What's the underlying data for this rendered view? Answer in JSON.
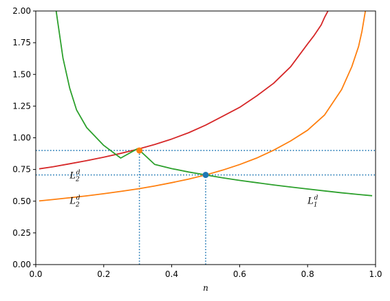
{
  "chart_data": {
    "type": "line",
    "title": "",
    "xlabel": "n",
    "ylabel": "",
    "xlim": [
      0.0,
      1.0
    ],
    "ylim": [
      0.0,
      2.0
    ],
    "grid": false,
    "xticks": [
      "0.0",
      "0.2",
      "0.4",
      "0.6",
      "0.8",
      "1.0"
    ],
    "yticks": [
      "0.00",
      "0.25",
      "0.50",
      "0.75",
      "1.00",
      "1.25",
      "1.50",
      "1.75",
      "2.00"
    ],
    "colors": {
      "red": "#d62728",
      "orange": "#ff7f0e",
      "green": "#2ca02c",
      "blue": "#1f77b4"
    },
    "series": [
      {
        "color": "#d62728",
        "x": [
          0.01,
          0.05,
          0.1,
          0.15,
          0.2,
          0.25,
          0.3,
          0.35,
          0.4,
          0.45,
          0.5,
          0.55,
          0.6,
          0.65,
          0.7,
          0.75,
          0.8,
          0.82,
          0.84,
          0.85,
          0.86
        ],
        "y": [
          0.755,
          0.771,
          0.795,
          0.82,
          0.847,
          0.877,
          0.91,
          0.947,
          0.99,
          1.04,
          1.1,
          1.17,
          1.24,
          1.33,
          1.43,
          1.56,
          1.74,
          1.81,
          1.89,
          1.95,
          2.0
        ]
      },
      {
        "color": "#ff7f0e",
        "x": [
          0.01,
          0.05,
          0.1,
          0.15,
          0.2,
          0.25,
          0.3,
          0.35,
          0.4,
          0.45,
          0.5,
          0.55,
          0.6,
          0.65,
          0.7,
          0.75,
          0.8,
          0.85,
          0.9,
          0.93,
          0.95,
          0.96,
          0.97
        ],
        "y": [
          0.502,
          0.513,
          0.527,
          0.542,
          0.559,
          0.577,
          0.597,
          0.62,
          0.646,
          0.674,
          0.707,
          0.745,
          0.789,
          0.84,
          0.902,
          0.975,
          1.06,
          1.18,
          1.38,
          1.56,
          1.72,
          1.84,
          2.0
        ]
      },
      {
        "color": "#2ca02c",
        "x": [
          0.06,
          0.08,
          0.1,
          0.12,
          0.15,
          0.2,
          0.25,
          0.3,
          0.35,
          0.4,
          0.45,
          0.5,
          0.55,
          0.6,
          0.65,
          0.7,
          0.75,
          0.8,
          0.85,
          0.9,
          0.95,
          0.99
        ],
        "y": [
          2.0,
          1.63,
          1.39,
          1.22,
          1.08,
          0.94,
          0.84,
          0.915,
          0.79,
          0.757,
          0.73,
          0.707,
          0.684,
          0.664,
          0.646,
          0.628,
          0.612,
          0.596,
          0.581,
          0.566,
          0.553,
          0.543
        ]
      }
    ],
    "reference_lines": [
      {
        "orientation": "horizontal",
        "value": 0.9,
        "color": "#1f77b4",
        "style": "dotted"
      },
      {
        "orientation": "horizontal",
        "value": 0.707,
        "color": "#1f77b4",
        "style": "dotted"
      },
      {
        "orientation": "vertical",
        "value": 0.305,
        "to": 0.9,
        "color": "#1f77b4",
        "style": "dotted"
      },
      {
        "orientation": "vertical",
        "value": 0.5,
        "to": 0.707,
        "color": "#1f77b4",
        "style": "dotted"
      }
    ],
    "points": [
      {
        "x": 0.305,
        "y": 0.9,
        "color": "#ff7f0e"
      },
      {
        "x": 0.5,
        "y": 0.707,
        "color": "#1f77b4"
      }
    ],
    "annotations": [
      {
        "base": "L",
        "sub": "2",
        "sup": "d",
        "x": 0.1,
        "y": 0.68
      },
      {
        "base": "L",
        "sub": "2",
        "sup": "d",
        "x": 0.1,
        "y": 0.48
      },
      {
        "base": "L",
        "sub": "1",
        "sup": "d",
        "x": 0.8,
        "y": 0.48
      }
    ]
  }
}
